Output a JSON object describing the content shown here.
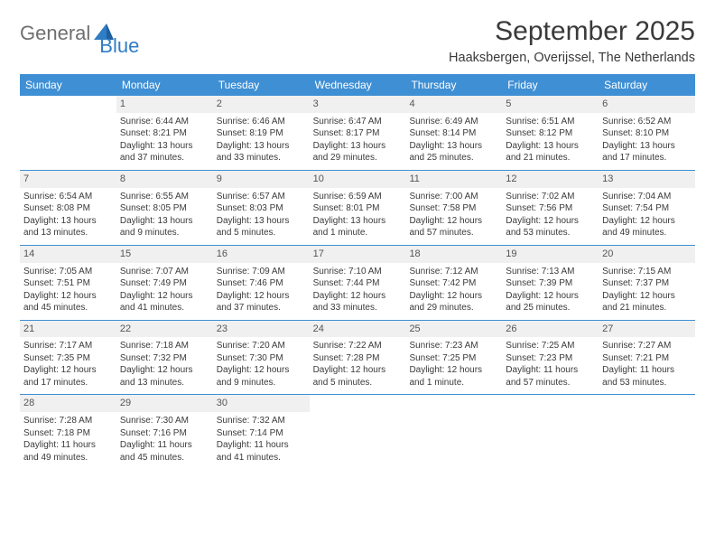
{
  "brand": {
    "part1": "General",
    "part2": "Blue"
  },
  "title": "September 2025",
  "location": "Haaksbergen, Overijssel, The Netherlands",
  "colors": {
    "header_bg": "#3f8fd4",
    "header_text": "#ffffff",
    "border": "#3f8fd4",
    "daynum_bg": "#f0f0f0",
    "text": "#3a3a3a",
    "logo_gray": "#6f6f6f",
    "logo_blue": "#2f7dc4",
    "page_bg": "#ffffff"
  },
  "day_names": [
    "Sunday",
    "Monday",
    "Tuesday",
    "Wednesday",
    "Thursday",
    "Friday",
    "Saturday"
  ],
  "weeks": [
    [
      {
        "n": "",
        "sunrise": "",
        "sunset": "",
        "dl1": "",
        "dl2": ""
      },
      {
        "n": "1",
        "sunrise": "Sunrise: 6:44 AM",
        "sunset": "Sunset: 8:21 PM",
        "dl1": "Daylight: 13 hours",
        "dl2": "and 37 minutes."
      },
      {
        "n": "2",
        "sunrise": "Sunrise: 6:46 AM",
        "sunset": "Sunset: 8:19 PM",
        "dl1": "Daylight: 13 hours",
        "dl2": "and 33 minutes."
      },
      {
        "n": "3",
        "sunrise": "Sunrise: 6:47 AM",
        "sunset": "Sunset: 8:17 PM",
        "dl1": "Daylight: 13 hours",
        "dl2": "and 29 minutes."
      },
      {
        "n": "4",
        "sunrise": "Sunrise: 6:49 AM",
        "sunset": "Sunset: 8:14 PM",
        "dl1": "Daylight: 13 hours",
        "dl2": "and 25 minutes."
      },
      {
        "n": "5",
        "sunrise": "Sunrise: 6:51 AM",
        "sunset": "Sunset: 8:12 PM",
        "dl1": "Daylight: 13 hours",
        "dl2": "and 21 minutes."
      },
      {
        "n": "6",
        "sunrise": "Sunrise: 6:52 AM",
        "sunset": "Sunset: 8:10 PM",
        "dl1": "Daylight: 13 hours",
        "dl2": "and 17 minutes."
      }
    ],
    [
      {
        "n": "7",
        "sunrise": "Sunrise: 6:54 AM",
        "sunset": "Sunset: 8:08 PM",
        "dl1": "Daylight: 13 hours",
        "dl2": "and 13 minutes."
      },
      {
        "n": "8",
        "sunrise": "Sunrise: 6:55 AM",
        "sunset": "Sunset: 8:05 PM",
        "dl1": "Daylight: 13 hours",
        "dl2": "and 9 minutes."
      },
      {
        "n": "9",
        "sunrise": "Sunrise: 6:57 AM",
        "sunset": "Sunset: 8:03 PM",
        "dl1": "Daylight: 13 hours",
        "dl2": "and 5 minutes."
      },
      {
        "n": "10",
        "sunrise": "Sunrise: 6:59 AM",
        "sunset": "Sunset: 8:01 PM",
        "dl1": "Daylight: 13 hours",
        "dl2": "and 1 minute."
      },
      {
        "n": "11",
        "sunrise": "Sunrise: 7:00 AM",
        "sunset": "Sunset: 7:58 PM",
        "dl1": "Daylight: 12 hours",
        "dl2": "and 57 minutes."
      },
      {
        "n": "12",
        "sunrise": "Sunrise: 7:02 AM",
        "sunset": "Sunset: 7:56 PM",
        "dl1": "Daylight: 12 hours",
        "dl2": "and 53 minutes."
      },
      {
        "n": "13",
        "sunrise": "Sunrise: 7:04 AM",
        "sunset": "Sunset: 7:54 PM",
        "dl1": "Daylight: 12 hours",
        "dl2": "and 49 minutes."
      }
    ],
    [
      {
        "n": "14",
        "sunrise": "Sunrise: 7:05 AM",
        "sunset": "Sunset: 7:51 PM",
        "dl1": "Daylight: 12 hours",
        "dl2": "and 45 minutes."
      },
      {
        "n": "15",
        "sunrise": "Sunrise: 7:07 AM",
        "sunset": "Sunset: 7:49 PM",
        "dl1": "Daylight: 12 hours",
        "dl2": "and 41 minutes."
      },
      {
        "n": "16",
        "sunrise": "Sunrise: 7:09 AM",
        "sunset": "Sunset: 7:46 PM",
        "dl1": "Daylight: 12 hours",
        "dl2": "and 37 minutes."
      },
      {
        "n": "17",
        "sunrise": "Sunrise: 7:10 AM",
        "sunset": "Sunset: 7:44 PM",
        "dl1": "Daylight: 12 hours",
        "dl2": "and 33 minutes."
      },
      {
        "n": "18",
        "sunrise": "Sunrise: 7:12 AM",
        "sunset": "Sunset: 7:42 PM",
        "dl1": "Daylight: 12 hours",
        "dl2": "and 29 minutes."
      },
      {
        "n": "19",
        "sunrise": "Sunrise: 7:13 AM",
        "sunset": "Sunset: 7:39 PM",
        "dl1": "Daylight: 12 hours",
        "dl2": "and 25 minutes."
      },
      {
        "n": "20",
        "sunrise": "Sunrise: 7:15 AM",
        "sunset": "Sunset: 7:37 PM",
        "dl1": "Daylight: 12 hours",
        "dl2": "and 21 minutes."
      }
    ],
    [
      {
        "n": "21",
        "sunrise": "Sunrise: 7:17 AM",
        "sunset": "Sunset: 7:35 PM",
        "dl1": "Daylight: 12 hours",
        "dl2": "and 17 minutes."
      },
      {
        "n": "22",
        "sunrise": "Sunrise: 7:18 AM",
        "sunset": "Sunset: 7:32 PM",
        "dl1": "Daylight: 12 hours",
        "dl2": "and 13 minutes."
      },
      {
        "n": "23",
        "sunrise": "Sunrise: 7:20 AM",
        "sunset": "Sunset: 7:30 PM",
        "dl1": "Daylight: 12 hours",
        "dl2": "and 9 minutes."
      },
      {
        "n": "24",
        "sunrise": "Sunrise: 7:22 AM",
        "sunset": "Sunset: 7:28 PM",
        "dl1": "Daylight: 12 hours",
        "dl2": "and 5 minutes."
      },
      {
        "n": "25",
        "sunrise": "Sunrise: 7:23 AM",
        "sunset": "Sunset: 7:25 PM",
        "dl1": "Daylight: 12 hours",
        "dl2": "and 1 minute."
      },
      {
        "n": "26",
        "sunrise": "Sunrise: 7:25 AM",
        "sunset": "Sunset: 7:23 PM",
        "dl1": "Daylight: 11 hours",
        "dl2": "and 57 minutes."
      },
      {
        "n": "27",
        "sunrise": "Sunrise: 7:27 AM",
        "sunset": "Sunset: 7:21 PM",
        "dl1": "Daylight: 11 hours",
        "dl2": "and 53 minutes."
      }
    ],
    [
      {
        "n": "28",
        "sunrise": "Sunrise: 7:28 AM",
        "sunset": "Sunset: 7:18 PM",
        "dl1": "Daylight: 11 hours",
        "dl2": "and 49 minutes."
      },
      {
        "n": "29",
        "sunrise": "Sunrise: 7:30 AM",
        "sunset": "Sunset: 7:16 PM",
        "dl1": "Daylight: 11 hours",
        "dl2": "and 45 minutes."
      },
      {
        "n": "30",
        "sunrise": "Sunrise: 7:32 AM",
        "sunset": "Sunset: 7:14 PM",
        "dl1": "Daylight: 11 hours",
        "dl2": "and 41 minutes."
      },
      {
        "n": "",
        "sunrise": "",
        "sunset": "",
        "dl1": "",
        "dl2": ""
      },
      {
        "n": "",
        "sunrise": "",
        "sunset": "",
        "dl1": "",
        "dl2": ""
      },
      {
        "n": "",
        "sunrise": "",
        "sunset": "",
        "dl1": "",
        "dl2": ""
      },
      {
        "n": "",
        "sunrise": "",
        "sunset": "",
        "dl1": "",
        "dl2": ""
      }
    ]
  ]
}
